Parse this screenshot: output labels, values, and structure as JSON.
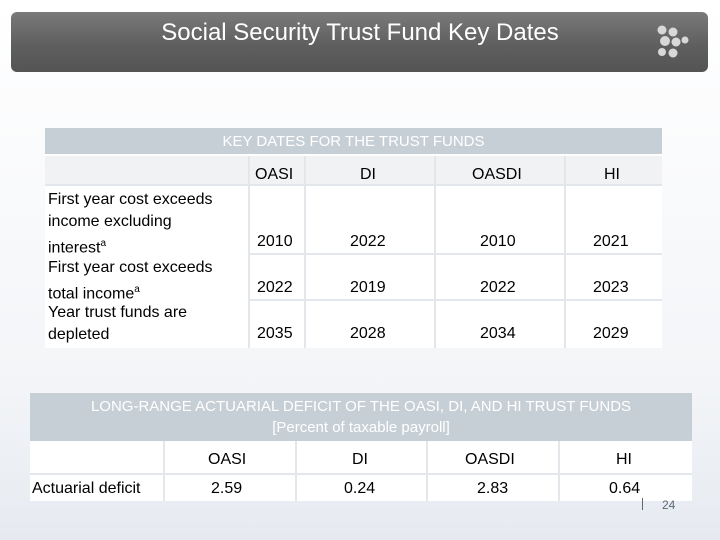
{
  "title": "Social Security Trust Fund Key Dates",
  "table1": {
    "heading": "KEY DATES FOR THE TRUST FUNDS",
    "columns": [
      "OASI",
      "DI",
      "OASDI",
      "HI"
    ],
    "rows": [
      {
        "label_lines": [
          "First year cost exceeds",
          "income excluding",
          "interest"
        ],
        "footnote": "a",
        "values": [
          "2010",
          "2022",
          "2010",
          "2021"
        ]
      },
      {
        "label_lines": [
          "First year cost exceeds",
          "total income"
        ],
        "footnote": "a",
        "values": [
          "2022",
          "2019",
          "2022",
          "2023"
        ]
      },
      {
        "label_lines": [
          "Year trust funds are",
          "depleted"
        ],
        "footnote": "",
        "values": [
          "2035",
          "2028",
          "2034",
          "2029"
        ]
      }
    ]
  },
  "table2": {
    "heading_line1": "LONG-RANGE ACTUARIAL DEFICIT OF THE OASI, DI, AND HI TRUST FUNDS",
    "heading_line2": "[Percent of taxable payroll]",
    "columns": [
      "OASI",
      "DI",
      "OASDI",
      "HI"
    ],
    "row_label": "Actuarial deficit",
    "values": [
      "2.59",
      "0.24",
      "2.83",
      "0.64"
    ]
  },
  "page_number": "24",
  "colors": {
    "title_bar": "#666666",
    "table_header": "#c7cfd6"
  },
  "icons": {
    "logo": "dots-logo-icon"
  }
}
